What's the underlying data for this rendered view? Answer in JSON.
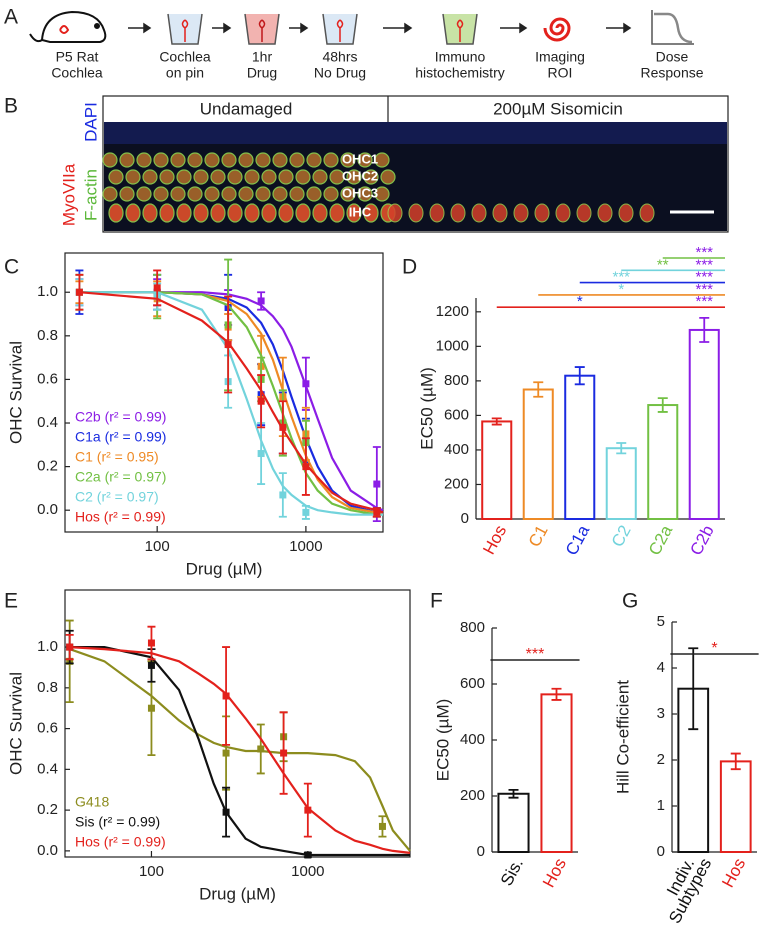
{
  "panel_a": {
    "label": "A",
    "steps": [
      [
        "P5 Rat",
        "Cochlea"
      ],
      [
        "Cochlea",
        "on pin"
      ],
      [
        "1hr",
        "Drug"
      ],
      [
        "48hrs",
        "No Drug"
      ],
      [
        "Immuno",
        "histochemistry"
      ],
      [
        "Imaging",
        "ROI"
      ],
      [
        "Dose",
        "Response"
      ]
    ]
  },
  "panel_b": {
    "label": "B",
    "titles": [
      "Undamaged",
      "200µM Sisomicin"
    ],
    "stains": [
      "MyoVIIa",
      "F-actin",
      "DAPI"
    ],
    "rows": [
      "OHC1",
      "OHC2",
      "OHC3",
      "IHC"
    ]
  },
  "chart_data": [
    {
      "type": "line",
      "panel": "C",
      "xlabel": "Drug (µM)",
      "ylabel": "OHC Survival",
      "xscale": "log",
      "xlim": [
        24,
        3300
      ],
      "xticks": [
        100,
        1000
      ],
      "ylim": [
        -0.1,
        1.18
      ],
      "yticks": [
        {
          "value": 0,
          "label": "0.0"
        },
        {
          "value": 0.2,
          "label": "0.2"
        },
        {
          "value": 0.4,
          "label": "0.4"
        },
        {
          "value": 0.6,
          "label": "0.6"
        },
        {
          "value": 0.8,
          "label": "0.8"
        },
        {
          "value": 1,
          "label": "1.0"
        }
      ],
      "legend": "lower left",
      "fit_x": [
        30,
        100,
        200,
        300,
        400,
        500,
        600,
        700,
        800,
        1000,
        1200,
        1500,
        2000,
        3000,
        3300
      ],
      "series": [
        {
          "name": "C2b (r² = 0.99)",
          "color": "#8b1de6",
          "x": [
            30,
            100,
            300,
            500,
            1000,
            3000
          ],
          "values": [
            1.0,
            1.0,
            0.93,
            0.96,
            0.58,
            0.12
          ],
          "errors": [
            0.06,
            0.06,
            0.08,
            0.04,
            0.12,
            0.17
          ],
          "fit_values": [
            1.0,
            1.0,
            1.0,
            0.99,
            0.97,
            0.94,
            0.89,
            0.83,
            0.75,
            0.57,
            0.42,
            0.24,
            0.09,
            0.01,
            0.0
          ]
        },
        {
          "name": "C1a (r² = 0.99)",
          "color": "#1a2be0",
          "x": [
            30,
            100,
            300,
            500,
            700,
            1000,
            3000
          ],
          "values": [
            1.0,
            1.0,
            0.93,
            0.53,
            0.4,
            0.32,
            -0.01
          ],
          "errors": [
            0.1,
            0.08,
            0.15,
            0.14,
            0.14,
            0.1,
            0.02
          ],
          "fit_values": [
            1.0,
            1.0,
            0.99,
            0.97,
            0.93,
            0.86,
            0.76,
            0.64,
            0.52,
            0.33,
            0.2,
            0.09,
            0.02,
            -0.01,
            -0.02
          ]
        },
        {
          "name": "C1 (r² = 0.95)",
          "color": "#ee8a25",
          "x": [
            30,
            100,
            300,
            500,
            700,
            1000
          ],
          "values": [
            1.0,
            0.97,
            0.84,
            0.66,
            0.52,
            0.35
          ],
          "errors": [
            0.05,
            0.08,
            0.06,
            0.14,
            0.18,
            0.12
          ],
          "fit_values": [
            1.0,
            1.0,
            0.99,
            0.96,
            0.9,
            0.81,
            0.69,
            0.55,
            0.43,
            0.25,
            0.14,
            0.06,
            0.01,
            -0.01,
            -0.02
          ]
        },
        {
          "name": "C2a (r² = 0.97)",
          "color": "#72c043",
          "x": [
            30,
            100,
            300,
            500,
            700,
            1000
          ],
          "values": [
            1.0,
            0.98,
            0.85,
            0.6,
            0.4,
            0.31
          ],
          "errors": [
            0.08,
            0.1,
            0.3,
            0.1,
            0.15,
            0.1
          ],
          "fit_values": [
            1.0,
            1.0,
            0.99,
            0.94,
            0.84,
            0.71,
            0.57,
            0.44,
            0.33,
            0.17,
            0.09,
            0.03,
            0.0,
            -0.02,
            -0.02
          ]
        },
        {
          "name": "C2 (r² = 0.97)",
          "color": "#72d3dc",
          "x": [
            30,
            100,
            300,
            500,
            700,
            1000
          ],
          "values": [
            1.0,
            0.98,
            0.59,
            0.26,
            0.07,
            -0.01
          ],
          "errors": [
            0.06,
            0.06,
            0.12,
            0.14,
            0.1,
            0.03
          ],
          "fit_values": [
            1.0,
            1.0,
            0.92,
            0.74,
            0.51,
            0.32,
            0.19,
            0.11,
            0.07,
            0.02,
            0.0,
            -0.01,
            -0.02,
            -0.02,
            -0.02
          ]
        },
        {
          "name": "Hos (r² = 0.99)",
          "color": "#e3211c",
          "x": [
            30,
            100,
            300,
            500,
            700,
            1000,
            3000
          ],
          "values": [
            1.0,
            1.02,
            0.76,
            0.5,
            0.38,
            0.2,
            -0.01
          ],
          "errors": [
            0.08,
            0.08,
            0.22,
            0.12,
            0.12,
            0.13,
            0.02
          ],
          "fit_values": [
            1.0,
            0.97,
            0.87,
            0.77,
            0.65,
            0.55,
            0.45,
            0.37,
            0.31,
            0.21,
            0.15,
            0.08,
            0.03,
            0.0,
            -0.01
          ]
        }
      ]
    },
    {
      "type": "bar",
      "panel": "D",
      "ylabel": "EC50 (µM)",
      "categories": [
        "Hos",
        "C1",
        "C1a",
        "C2",
        "C2a",
        "C2b"
      ],
      "colors": [
        "#e3211c",
        "#ee8a25",
        "#1a2be0",
        "#72d3dc",
        "#72c043",
        "#8b1de6"
      ],
      "values": [
        565,
        750,
        830,
        410,
        660,
        1095
      ],
      "errors": [
        18,
        42,
        50,
        30,
        40,
        70
      ],
      "ylim": [
        0,
        1280
      ],
      "yticks": [
        0,
        200,
        400,
        600,
        800,
        1000,
        1200
      ],
      "significance": [
        {
          "from": "C2a",
          "color": "#72c043",
          "stars": [
            {
              "at": "C2b",
              "label": "***",
              "color": "#8b1de6"
            }
          ]
        },
        {
          "from": "C2",
          "color": "#72d3dc",
          "stars": [
            {
              "at": "C2a",
              "label": "**",
              "color": "#72c043"
            },
            {
              "at": "C2b",
              "label": "***",
              "color": "#8b1de6"
            }
          ]
        },
        {
          "from": "C1a",
          "color": "#1a2be0",
          "stars": [
            {
              "at": "C2",
              "label": "***",
              "color": "#72d3dc"
            },
            {
              "at": "C2b",
              "label": "***",
              "color": "#8b1de6"
            }
          ]
        },
        {
          "from": "C1",
          "color": "#ee8a25",
          "stars": [
            {
              "at": "C2",
              "label": "*",
              "color": "#72d3dc"
            },
            {
              "at": "C2b",
              "label": "***",
              "color": "#8b1de6"
            }
          ]
        },
        {
          "from": "Hos",
          "color": "#e3211c",
          "stars": [
            {
              "at": "C1a",
              "label": "*",
              "color": "#1a2be0"
            },
            {
              "at": "C2b",
              "label": "***",
              "color": "#8b1de6"
            }
          ]
        }
      ]
    },
    {
      "type": "line",
      "panel": "E",
      "xlabel": "Drug (µM)",
      "ylabel": "OHC Survival",
      "xscale": "log",
      "xlim": [
        28,
        4500
      ],
      "xticks": [
        100,
        1000
      ],
      "ylim": [
        -0.03,
        1.28
      ],
      "yticks": [
        {
          "value": 0,
          "label": "0.0"
        },
        {
          "value": 0.2,
          "label": "0.2"
        },
        {
          "value": 0.4,
          "label": "0.4"
        },
        {
          "value": 0.6,
          "label": "0.6"
        },
        {
          "value": 0.8,
          "label": "0.8"
        },
        {
          "value": 1,
          "label": "1.0"
        }
      ],
      "legend": "lower left",
      "fit_x": [
        30,
        50,
        100,
        150,
        200,
        250,
        300,
        400,
        500,
        700,
        1000,
        1500,
        2000,
        2500,
        3000,
        3500,
        4500
      ],
      "series": [
        {
          "name": "G418",
          "color": "#8c8c1e",
          "x": [
            30,
            100,
            300,
            500,
            700,
            3000
          ],
          "values": [
            0.93,
            0.7,
            0.48,
            0.5,
            0.56,
            0.12
          ],
          "errors": [
            0.2,
            0.23,
            0.18,
            0.12,
            0.12,
            0.05
          ],
          "fit_values": [
            0.99,
            0.93,
            0.76,
            0.64,
            0.57,
            0.53,
            0.51,
            0.49,
            0.49,
            0.48,
            0.48,
            0.47,
            0.44,
            0.36,
            0.22,
            0.1,
            0.0
          ]
        },
        {
          "name": "Sis (r² = 0.99)",
          "color": "#111111",
          "x": [
            30,
            100,
            300,
            1000
          ],
          "values": [
            1.0,
            0.91,
            0.19,
            -0.02
          ],
          "errors": [
            0.08,
            0.08,
            0.12,
            0.01
          ],
          "fit_values": [
            1.0,
            1.0,
            0.95,
            0.79,
            0.55,
            0.33,
            0.19,
            0.06,
            0.02,
            0.0,
            -0.02,
            -0.02,
            -0.02,
            -0.02,
            -0.02,
            -0.02,
            -0.02
          ]
        },
        {
          "name": "Hos (r² = 0.99)",
          "color": "#e3211c",
          "x": [
            30,
            100,
            300,
            700,
            1000
          ],
          "values": [
            1.0,
            1.02,
            0.76,
            0.48,
            0.2
          ],
          "errors": [
            0.06,
            0.08,
            0.24,
            0.2,
            0.13
          ],
          "fit_values": [
            1.0,
            0.99,
            0.97,
            0.93,
            0.87,
            0.82,
            0.77,
            0.65,
            0.55,
            0.38,
            0.21,
            0.1,
            0.05,
            0.03,
            0.01,
            0.0,
            -0.01
          ]
        }
      ]
    },
    {
      "type": "bar",
      "panel": "F",
      "ylabel": "EC50 (µM)",
      "categories": [
        "Sis.",
        "Hos"
      ],
      "colors": [
        "#111111",
        "#e3211c"
      ],
      "values": [
        208,
        563
      ],
      "errors": [
        14,
        20
      ],
      "ylim": [
        0,
        800
      ],
      "yticks": [
        0,
        200,
        400,
        600,
        800
      ],
      "significance": [
        {
          "from": "Sis.",
          "to": "Hos",
          "label": "***",
          "color": "#e3211c"
        }
      ]
    },
    {
      "type": "bar",
      "panel": "G",
      "ylabel": "Hill Co-efficient",
      "categories": [
        [
          "Indiv.",
          "Subtypes"
        ],
        "Hos"
      ],
      "colors": [
        "#111111",
        "#e3211c"
      ],
      "values": [
        3.55,
        1.97
      ],
      "errors": [
        0.88,
        0.17
      ],
      "ylim": [
        0,
        5
      ],
      "yticks": [
        0,
        1,
        2,
        3,
        4,
        5
      ],
      "significance": [
        {
          "from": "Indiv. Subtypes",
          "to": "Hos",
          "label": "*",
          "color": "#e3211c"
        }
      ]
    }
  ]
}
